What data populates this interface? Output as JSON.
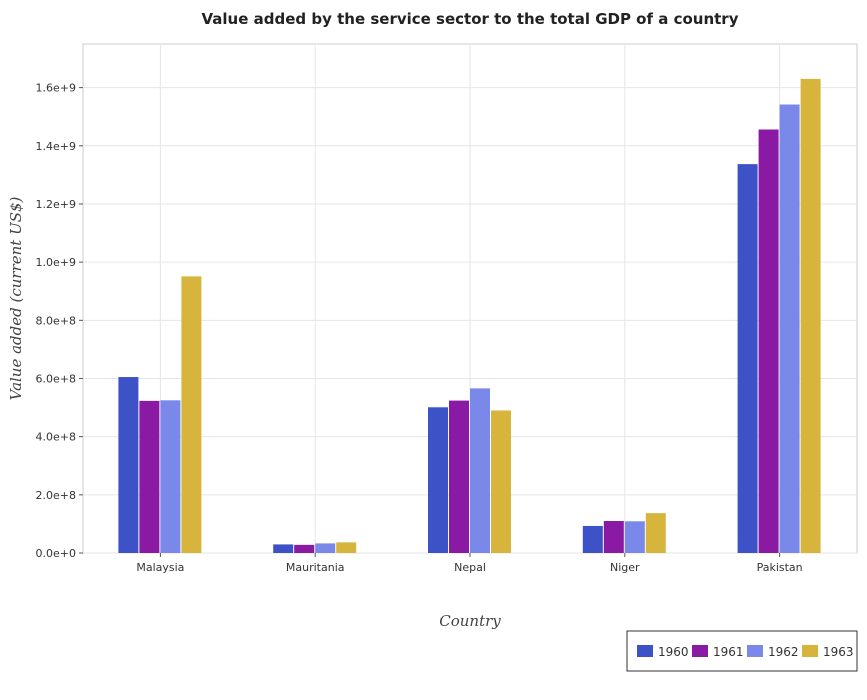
{
  "chart_data": {
    "type": "bar",
    "title": "Value added by the service sector to the total GDP of a country",
    "xlabel": "Country",
    "ylabel": "Value added (current US$)",
    "categories": [
      "Malaysia",
      "Mauritania",
      "Nepal",
      "Niger",
      "Pakistan"
    ],
    "series": [
      {
        "name": "1960",
        "color": "#3d52c7",
        "values": [
          605000000,
          29500000,
          501000000,
          93000000,
          1337000000
        ]
      },
      {
        "name": "1961",
        "color": "#8a1aa3",
        "values": [
          523000000,
          28000000,
          524000000,
          110000000,
          1456000000
        ]
      },
      {
        "name": "1962",
        "color": "#7a88ea",
        "values": [
          525000000,
          33000000,
          566000000,
          109000000,
          1542000000
        ]
      },
      {
        "name": "1963",
        "color": "#d7b53c",
        "values": [
          951000000,
          36500000,
          490000000,
          137000000,
          1630000000
        ]
      }
    ],
    "ylim": [
      0,
      1750000000
    ],
    "yticks": [
      0,
      200000000,
      400000000,
      600000000,
      800000000,
      1000000000,
      1200000000,
      1400000000,
      1600000000
    ],
    "ytick_labels": [
      "0.0e+0",
      "2.0e+8",
      "4.0e+8",
      "6.0e+8",
      "8.0e+8",
      "1.0e+9",
      "1.2e+9",
      "1.4e+9",
      "1.6e+9"
    ],
    "grid": true,
    "legend_position": "bottom-right"
  }
}
